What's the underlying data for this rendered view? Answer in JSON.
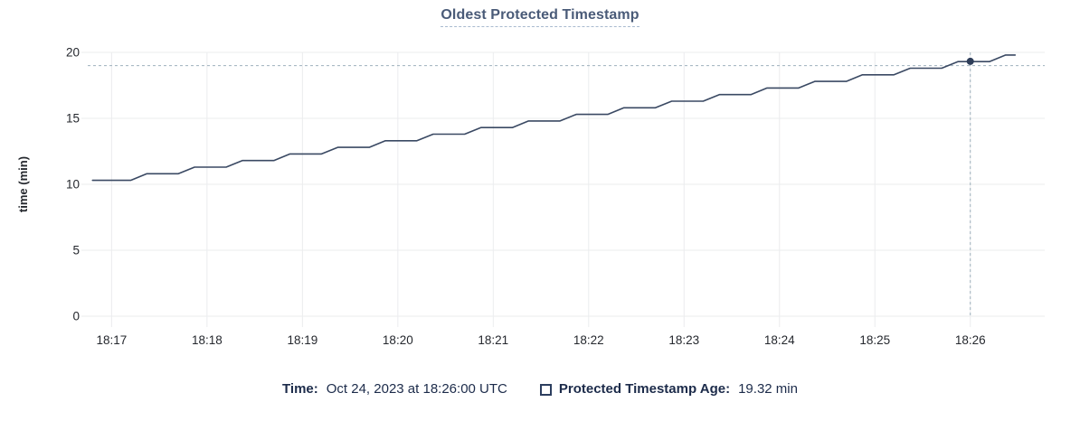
{
  "title": "Oldest Protected Timestamp",
  "colors": {
    "line": "#3a4963",
    "dot": "#2e3d59",
    "grid": "#ebecee",
    "crosshair": "#9fb1bd",
    "axis_text": "#25282e",
    "title_text": "#4a5b78",
    "legend_text": "#1c2b4a",
    "background": "#ffffff"
  },
  "legend": {
    "time_label": "Time:",
    "time_value": "Oct 24, 2023 at 18:26:00 UTC",
    "series_label": "Protected Timestamp Age:",
    "series_value": "19.32 min",
    "series_checkbox_state": "unchecked"
  },
  "chart_data": {
    "type": "line",
    "title": "Oldest Protected Timestamp",
    "xlabel": "",
    "ylabel": "time (min)",
    "ylim": [
      0,
      20
    ],
    "yticks": [
      0,
      5,
      10,
      15,
      20
    ],
    "x_unit": "minutes after 18:17 UTC",
    "xlim": [
      -0.25,
      9.78
    ],
    "xticks": [
      {
        "offset": 0,
        "label": "18:17"
      },
      {
        "offset": 1,
        "label": "18:18"
      },
      {
        "offset": 2,
        "label": "18:19"
      },
      {
        "offset": 3,
        "label": "18:20"
      },
      {
        "offset": 4,
        "label": "18:21"
      },
      {
        "offset": 5,
        "label": "18:22"
      },
      {
        "offset": 6,
        "label": "18:23"
      },
      {
        "offset": 7,
        "label": "18:24"
      },
      {
        "offset": 8,
        "label": "18:25"
      },
      {
        "offset": 9,
        "label": "18:26"
      }
    ],
    "grid": true,
    "legend_position": "bottom",
    "series": [
      {
        "name": "Protected Timestamp Age",
        "unit": "min",
        "points": [
          [
            -0.2,
            10.3
          ],
          [
            0.2,
            10.3
          ],
          [
            0.37,
            10.8
          ],
          [
            0.7,
            10.8
          ],
          [
            0.87,
            11.3
          ],
          [
            1.2,
            11.3
          ],
          [
            1.37,
            11.8
          ],
          [
            1.7,
            11.8
          ],
          [
            1.87,
            12.3
          ],
          [
            2.2,
            12.3
          ],
          [
            2.37,
            12.8
          ],
          [
            2.7,
            12.8
          ],
          [
            2.87,
            13.3
          ],
          [
            3.2,
            13.3
          ],
          [
            3.37,
            13.8
          ],
          [
            3.7,
            13.8
          ],
          [
            3.87,
            14.3
          ],
          [
            4.2,
            14.3
          ],
          [
            4.37,
            14.8
          ],
          [
            4.7,
            14.8
          ],
          [
            4.87,
            15.3
          ],
          [
            5.2,
            15.3
          ],
          [
            5.37,
            15.8
          ],
          [
            5.7,
            15.8
          ],
          [
            5.87,
            16.3
          ],
          [
            6.2,
            16.3
          ],
          [
            6.37,
            16.8
          ],
          [
            6.7,
            16.8
          ],
          [
            6.87,
            17.3
          ],
          [
            7.2,
            17.3
          ],
          [
            7.37,
            17.8
          ],
          [
            7.7,
            17.8
          ],
          [
            7.87,
            18.3
          ],
          [
            8.2,
            18.3
          ],
          [
            8.37,
            18.8
          ],
          [
            8.7,
            18.8
          ],
          [
            8.87,
            19.3
          ],
          [
            9.2,
            19.3
          ],
          [
            9.37,
            19.8
          ],
          [
            9.47,
            19.8
          ]
        ]
      }
    ],
    "crosshair": {
      "x_offset": 9.0,
      "y_value": 19.0
    },
    "highlight_point": {
      "x_offset": 9.0,
      "value": 19.32
    },
    "hover_readout": {
      "time": "Oct 24, 2023 at 18:26:00 UTC",
      "value": "19.32 min"
    }
  }
}
